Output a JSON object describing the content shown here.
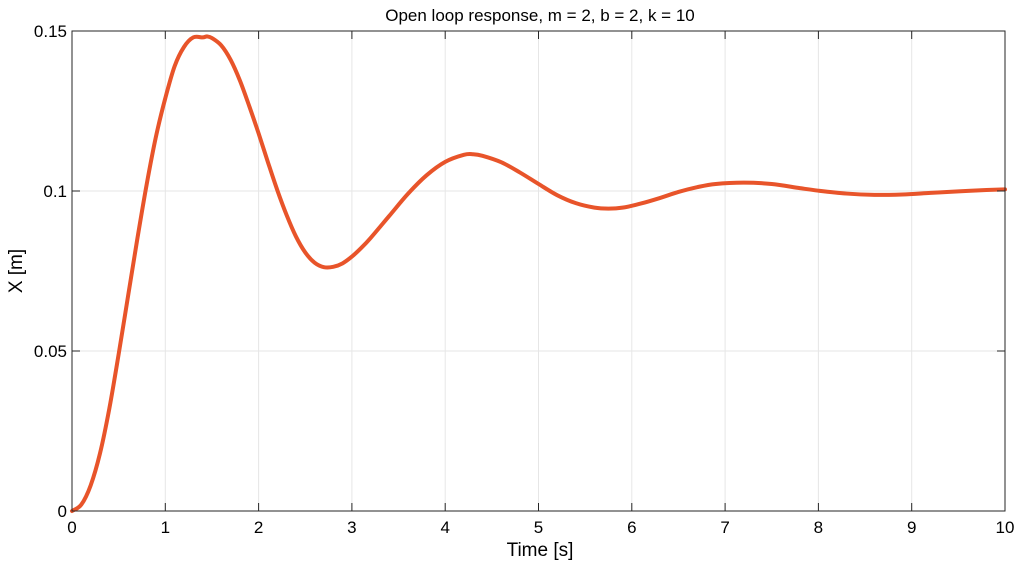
{
  "chart_data": {
    "type": "line",
    "title": "Open loop response, m = 2, b = 2, k = 10",
    "xlabel": "Time [s]",
    "ylabel": "X [m]",
    "xlim": [
      0,
      10
    ],
    "ylim": [
      0,
      0.15
    ],
    "xticks": [
      0,
      1,
      2,
      3,
      4,
      5,
      6,
      7,
      8,
      9,
      10
    ],
    "xtick_labels": [
      "0",
      "1",
      "2",
      "3",
      "4",
      "5",
      "6",
      "7",
      "8",
      "9",
      "10"
    ],
    "yticks": [
      0,
      0.05,
      0.1,
      0.15
    ],
    "ytick_labels": [
      "0",
      "0.05",
      "0.1",
      "0.15"
    ],
    "grid": true,
    "legend": "none",
    "color": "#e8542a",
    "series": [
      {
        "x": [
          0,
          0.1,
          0.2,
          0.3,
          0.4,
          0.5,
          0.6,
          0.7,
          0.8,
          0.9,
          1.0,
          1.1,
          1.2,
          1.3,
          1.4,
          1.45,
          1.5,
          1.6,
          1.7,
          1.8,
          1.9,
          2.0,
          2.1,
          2.2,
          2.3,
          2.4,
          2.5,
          2.6,
          2.7,
          2.8,
          2.9,
          3.0,
          3.1,
          3.2,
          3.4,
          3.6,
          3.8,
          4.0,
          4.2,
          4.3,
          4.4,
          4.6,
          4.8,
          5.0,
          5.2,
          5.4,
          5.6,
          5.75,
          5.9,
          6.1,
          6.3,
          6.5,
          6.7,
          6.9,
          7.2,
          7.5,
          7.8,
          8.0,
          8.3,
          8.6,
          8.9,
          9.2,
          9.5,
          9.8,
          10.0
        ],
        "y": [
          0,
          0.002,
          0.008,
          0.018,
          0.032,
          0.049,
          0.067,
          0.085,
          0.102,
          0.117,
          0.129,
          0.139,
          0.145,
          0.148,
          0.148,
          0.1483,
          0.1478,
          0.1455,
          0.141,
          0.1345,
          0.1265,
          0.118,
          0.109,
          0.1003,
          0.0925,
          0.0858,
          0.0808,
          0.0776,
          0.0762,
          0.0763,
          0.0774,
          0.0795,
          0.0822,
          0.0853,
          0.0922,
          0.0991,
          0.1049,
          0.1091,
          0.1113,
          0.1115,
          0.111,
          0.109,
          0.1058,
          0.1022,
          0.0987,
          0.0962,
          0.0948,
          0.0945,
          0.0948,
          0.0961,
          0.0978,
          0.0997,
          0.1012,
          0.1022,
          0.1026,
          0.1022,
          0.1009,
          0.1001,
          0.0992,
          0.0988,
          0.0989,
          0.0994,
          0.0999,
          0.1003,
          0.1005
        ]
      }
    ]
  }
}
